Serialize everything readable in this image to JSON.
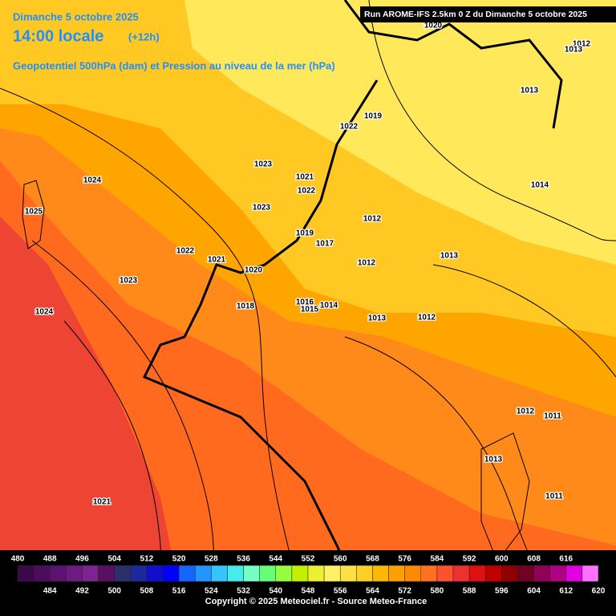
{
  "header": {
    "date": "Dimanche 5 octobre 2025",
    "time": "14:00 locale",
    "offset": "(+12h)",
    "subtitle": "Geopotentiel 500hPa (dam) et Pression au niveau de la mer (hPa)",
    "run": "Run AROME-IFS 2.5km 0 Z du Dimanche 5 octobre 2025"
  },
  "isobar_labels": [
    1020,
    1012,
    1013,
    1013,
    1022,
    1019,
    1014,
    1023,
    1021,
    1022,
    1024,
    1025,
    1023,
    1012,
    1019,
    1017,
    1013,
    1012,
    1022,
    1021,
    1020,
    1023,
    1016,
    1015,
    1014,
    1018,
    1024,
    1013,
    1012,
    1012,
    1011,
    1013,
    1011,
    1021
  ],
  "color_scale": {
    "values": [
      480,
      484,
      488,
      492,
      496,
      500,
      504,
      508,
      512,
      516,
      520,
      524,
      528,
      532,
      536,
      540,
      544,
      548,
      552,
      556,
      560,
      564,
      568,
      572,
      576,
      580,
      584,
      588,
      592,
      596,
      600,
      604,
      608,
      612,
      616,
      620
    ],
    "colors": [
      "#3a0a48",
      "#4a0e5c",
      "#5c1270",
      "#6e1a80",
      "#7e2392",
      "#5a1060",
      "#2c3068",
      "#1a2a9c",
      "#1010cc",
      "#0000ff",
      "#1466ff",
      "#2494ff",
      "#34c4ff",
      "#44ecec",
      "#74ffc4",
      "#64ff74",
      "#94ff40",
      "#c4f000",
      "#ecf030",
      "#fff064",
      "#ffe044",
      "#ffd024",
      "#ffb800",
      "#ffa000",
      "#ff8a00",
      "#ff7020",
      "#ff5030",
      "#f03030",
      "#e01010",
      "#c00000",
      "#900000",
      "#700024",
      "#900054",
      "#b00084",
      "#e000e0",
      "#ff70ff"
    ]
  },
  "copyright": "Copyright © 2025 Meteociel.fr - Source Meteo-France"
}
